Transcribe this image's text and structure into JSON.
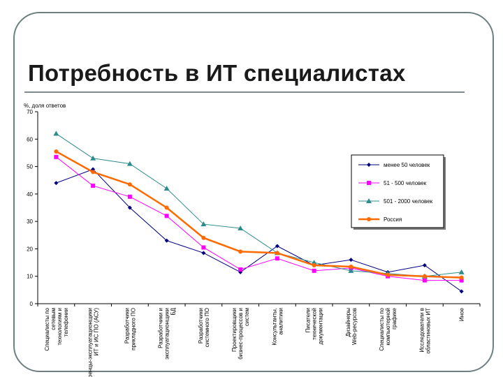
{
  "page": {
    "title": "Потребность в ИТ специалистах"
  },
  "chart_data": {
    "type": "line",
    "title": "",
    "xlabel": "",
    "ylabel": "%, доля ответов",
    "ylim": [
      0,
      70
    ],
    "yticks": [
      0,
      10,
      20,
      30,
      40,
      50,
      60,
      70
    ],
    "grid": false,
    "legend_position": "right",
    "categories": [
      "Специалисты по сетевым технологиям и телефонии",
      "Внедренцы-эксплуатационщики ИТ и ИС ПО (АСУ)",
      "Разработчики прикладного ПО",
      "Разработчики и эксплуатационщики БД",
      "Разработчики системного ПО",
      "Проектировщики бизнес-процессов и систем",
      "Консультанты, аналитики",
      "Писатели технической документации",
      "Дизайнеры Web-ресурсов",
      "Специалисты по компьютерной графике",
      "Исследователи в областиновых ИТ",
      "Иное"
    ],
    "series": [
      {
        "name": "менее 50 человек",
        "color": "#000080",
        "marker": "diamond",
        "values": [
          44,
          49,
          35,
          23,
          18.5,
          11.5,
          21,
          14,
          16,
          11.5,
          14,
          4.5
        ]
      },
      {
        "name": "51 - 500 человек",
        "color": "#ff00ff",
        "marker": "square",
        "values": [
          53.5,
          43,
          39,
          32,
          20.5,
          12.5,
          16.5,
          12,
          13,
          10,
          8.5,
          8.5
        ]
      },
      {
        "name": "501 - 2000 человек",
        "color": "#2e8b8b",
        "marker": "triangle",
        "values": [
          62,
          53,
          51,
          42,
          29,
          27.5,
          18.5,
          15,
          12,
          11,
          10,
          11.5
        ]
      },
      {
        "name": "Россия",
        "color": "#ff6a00",
        "marker": "circle",
        "values": [
          55.5,
          48,
          43.5,
          35,
          24,
          19,
          18.5,
          14,
          13.5,
          10.5,
          10,
          9.5
        ]
      }
    ]
  }
}
